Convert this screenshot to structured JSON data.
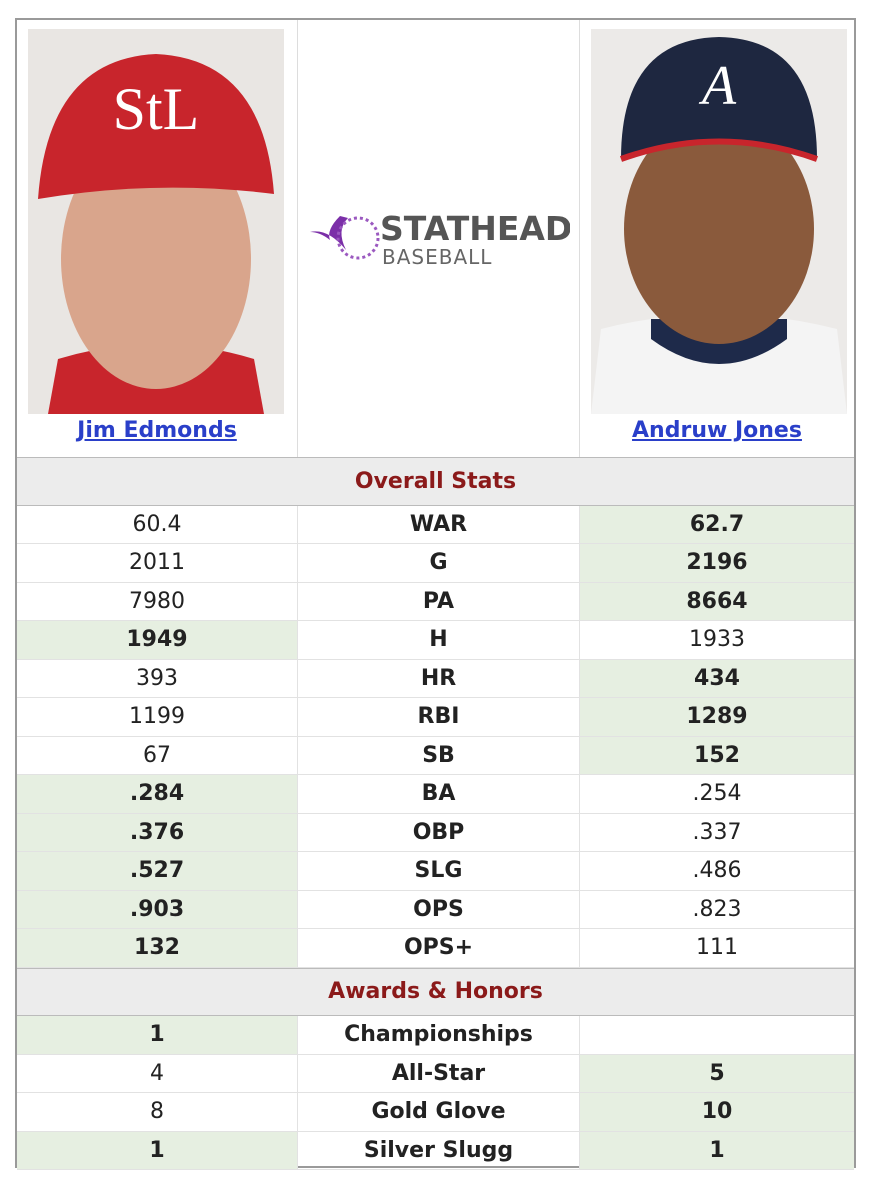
{
  "players": [
    {
      "name": "Jim Edmonds"
    },
    {
      "name": "Andruw Jones"
    }
  ],
  "logo": {
    "brand": "STATHEAD",
    "sub": "BASEBALL"
  },
  "sections": [
    {
      "title": "Overall Stats",
      "rows": [
        {
          "stat": "WAR",
          "left": "60.4",
          "right": "62.7",
          "leader": "right"
        },
        {
          "stat": "G",
          "left": "2011",
          "right": "2196",
          "leader": "right"
        },
        {
          "stat": "PA",
          "left": "7980",
          "right": "8664",
          "leader": "right"
        },
        {
          "stat": "H",
          "left": "1949",
          "right": "1933",
          "leader": "left"
        },
        {
          "stat": "HR",
          "left": "393",
          "right": "434",
          "leader": "right"
        },
        {
          "stat": "RBI",
          "left": "1199",
          "right": "1289",
          "leader": "right"
        },
        {
          "stat": "SB",
          "left": "67",
          "right": "152",
          "leader": "right"
        },
        {
          "stat": "BA",
          "left": ".284",
          "right": ".254",
          "leader": "left"
        },
        {
          "stat": "OBP",
          "left": ".376",
          "right": ".337",
          "leader": "left"
        },
        {
          "stat": "SLG",
          "left": ".527",
          "right": ".486",
          "leader": "left"
        },
        {
          "stat": "OPS",
          "left": ".903",
          "right": ".823",
          "leader": "left"
        },
        {
          "stat": "OPS+",
          "left": "132",
          "right": "111",
          "leader": "left"
        }
      ]
    },
    {
      "title": "Awards & Honors",
      "rows": [
        {
          "stat": "Championships",
          "left": "1",
          "right": null,
          "leader": "left"
        },
        {
          "stat": "All-Star",
          "left": "4",
          "right": "5",
          "leader": "right"
        },
        {
          "stat": "Gold Glove",
          "left": "8",
          "right": "10",
          "leader": "right"
        },
        {
          "stat": "Silver Slugg",
          "left": "1",
          "right": "1",
          "leader": "both"
        }
      ]
    }
  ]
}
